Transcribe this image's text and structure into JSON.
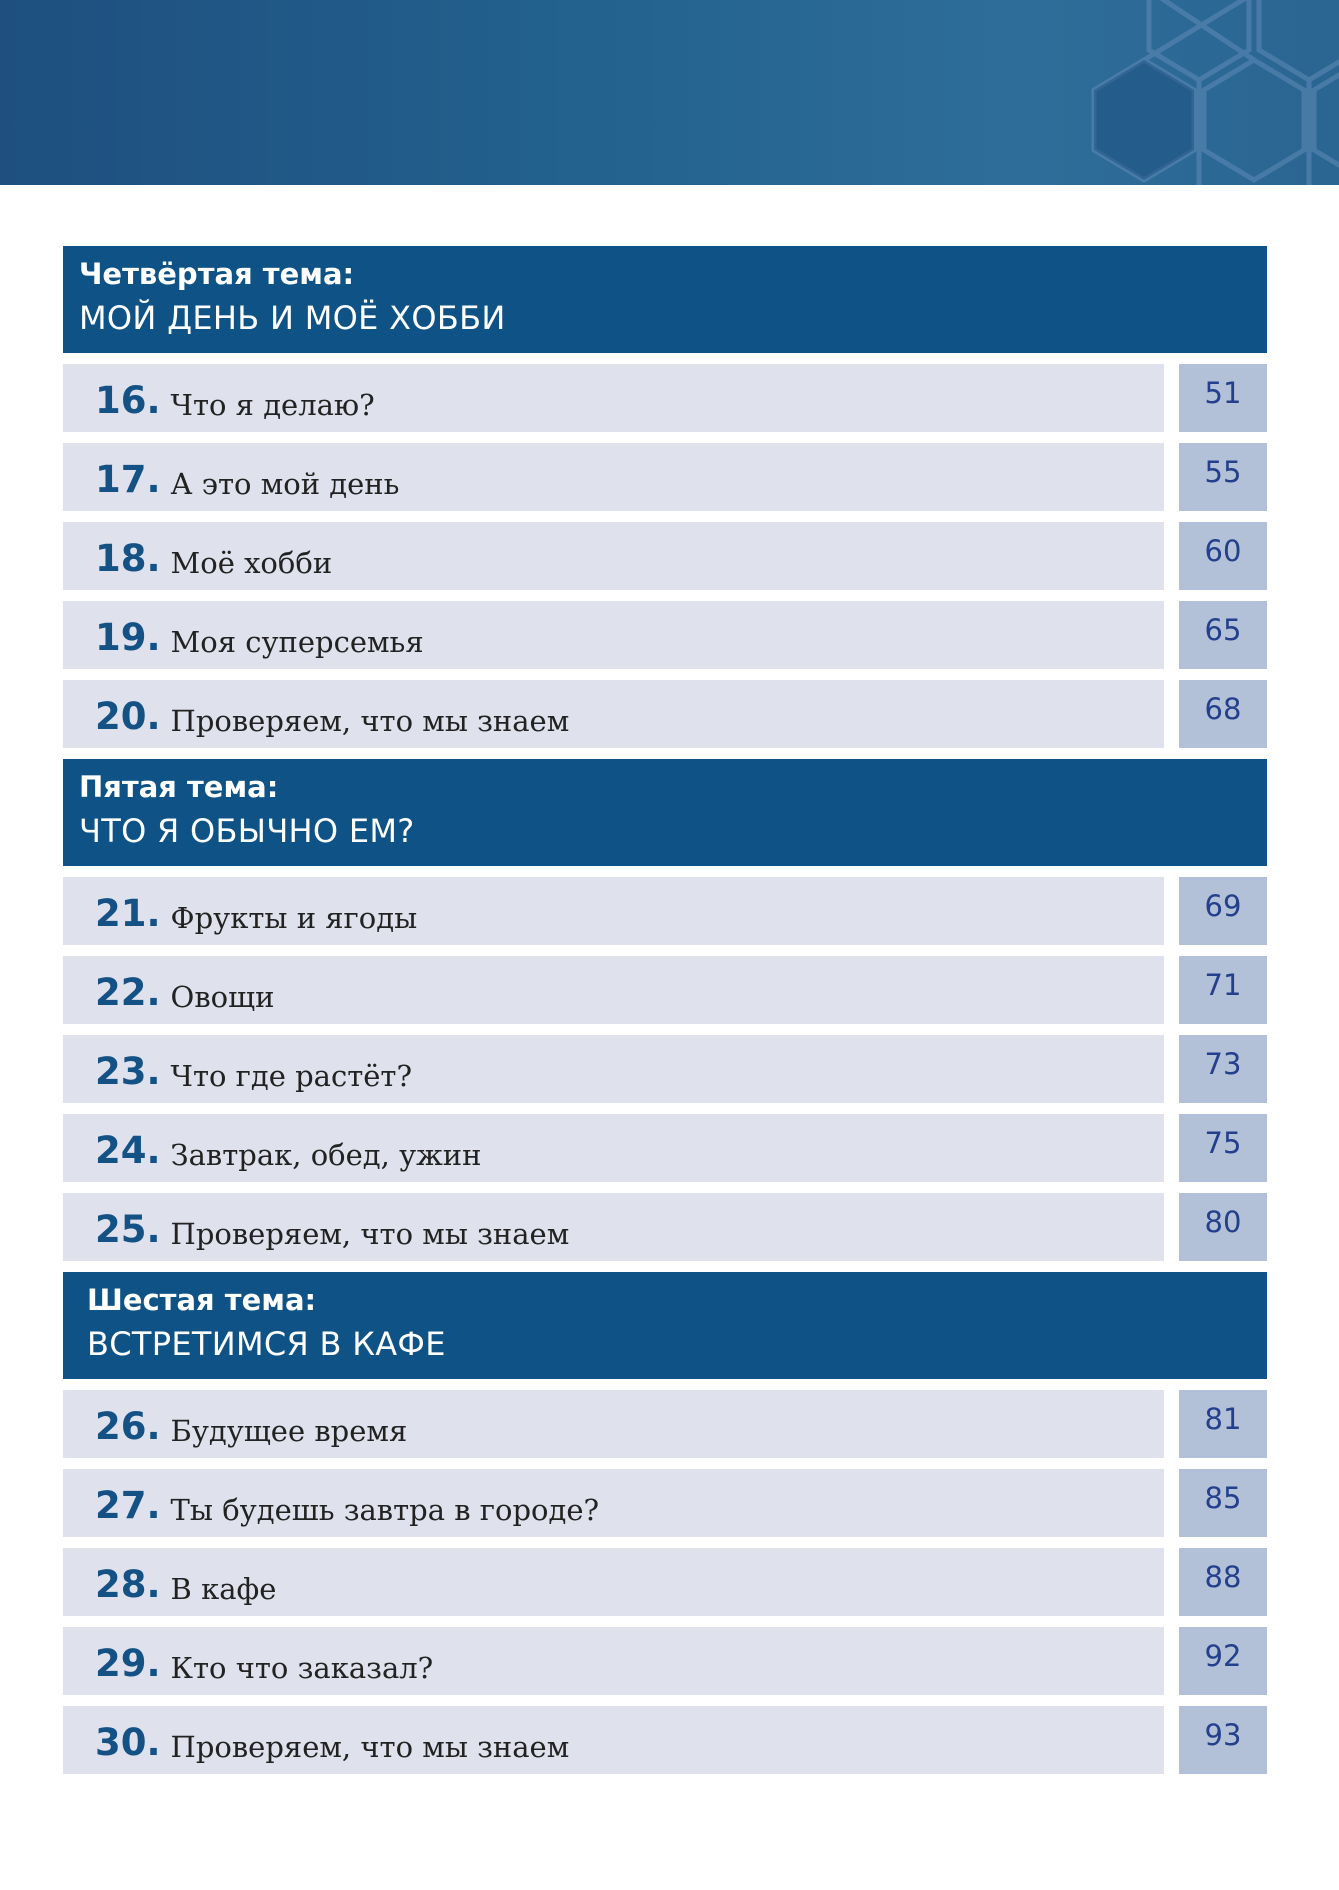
{
  "sections": [
    {
      "label": "Четвёртая тема:",
      "title": "МОЙ ДЕНЬ И МОЁ ХОББИ",
      "items": [
        {
          "number": "16.",
          "title": "Что я делаю?",
          "page": "51"
        },
        {
          "number": "17.",
          "title": "А это мой день",
          "page": "55"
        },
        {
          "number": "18.",
          "title": "Моё хобби",
          "page": "60"
        },
        {
          "number": "19.",
          "title": "Моя суперсемья",
          "page": "65"
        },
        {
          "number": "20.",
          "title": "Проверяем, что мы знаем",
          "page": "68"
        }
      ]
    },
    {
      "label": "Пятая тема:",
      "title": "ЧТО Я ОБЫЧНО ЕМ?",
      "items": [
        {
          "number": "21.",
          "title": "Фрукты и ягоды",
          "page": "69"
        },
        {
          "number": "22.",
          "title": "Овощи",
          "page": "71"
        },
        {
          "number": "23.",
          "title": "Что где растёт?",
          "page": "73"
        },
        {
          "number": "24.",
          "title": "Завтрак, обед, ужин",
          "page": "75"
        },
        {
          "number": "25.",
          "title": "Проверяем, что мы знаем",
          "page": "80"
        }
      ]
    },
    {
      "label": "Шестая тема:",
      "title": "ВСТРЕТИМСЯ В КАФЕ",
      "items": [
        {
          "number": "26.",
          "title": "Будущее время",
          "page": "81"
        },
        {
          "number": "27.",
          "title": "Ты будешь завтра в городе?",
          "page": "85"
        },
        {
          "number": "28.",
          "title": "В кафе",
          "page": "88"
        },
        {
          "number": "29.",
          "title": "Кто что заказал?",
          "page": "92"
        },
        {
          "number": "30.",
          "title": "Проверяем, что мы знаем",
          "page": "93"
        }
      ]
    }
  ],
  "colors": {
    "header_bg": "#0f5386",
    "row_bg": "#dfe1ec",
    "page_bg": "#b2c0d8",
    "number_text": "#145286",
    "page_text": "#24408c"
  }
}
